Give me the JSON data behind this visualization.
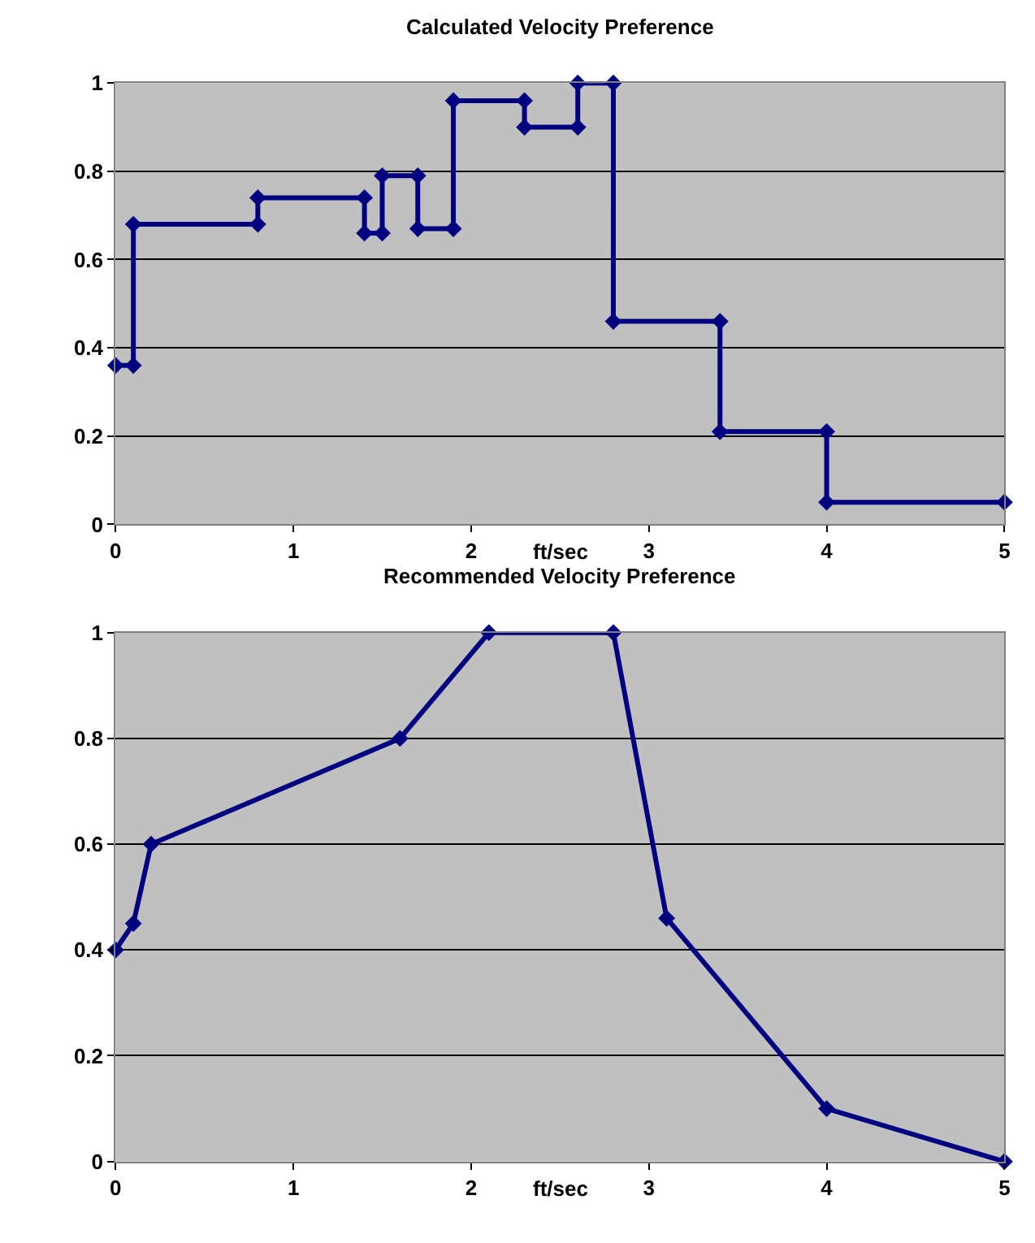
{
  "chart_data": [
    {
      "type": "line",
      "title": "Calculated Velocity Preference",
      "xlabel": "ft/sec",
      "xlim": [
        0,
        5
      ],
      "xticks": [
        0,
        1,
        2,
        3,
        4,
        5
      ],
      "ylim": [
        0,
        1
      ],
      "yticks": [
        0,
        0.2,
        0.4,
        0.6,
        0.8,
        1
      ],
      "grid": "y",
      "marker": "diamond",
      "line_style": "solid",
      "x": [
        0,
        0.1,
        0.1,
        0.8,
        0.8,
        1.4,
        1.4,
        1.5,
        1.5,
        1.7,
        1.7,
        1.9,
        1.9,
        2.3,
        2.3,
        2.6,
        2.6,
        2.8,
        2.8,
        3.4,
        3.4,
        4,
        4,
        5
      ],
      "series": [
        {
          "color": "#000080",
          "values": [
            0.36,
            0.36,
            0.68,
            0.68,
            0.74,
            0.74,
            0.66,
            0.66,
            0.79,
            0.79,
            0.67,
            0.67,
            0.96,
            0.96,
            0.9,
            0.9,
            1,
            1,
            0.46,
            0.46,
            0.21,
            0.21,
            0.05,
            0.05
          ]
        }
      ]
    },
    {
      "type": "line",
      "title": "Recommended Velocity Preference",
      "xlabel": "ft/sec",
      "xlim": [
        0,
        5
      ],
      "xticks": [
        0,
        1,
        2,
        3,
        4,
        5
      ],
      "ylim": [
        0,
        1
      ],
      "yticks": [
        0,
        0.2,
        0.4,
        0.6,
        0.8,
        1
      ],
      "grid": "y",
      "marker": "diamond",
      "line_style": "solid",
      "x": [
        0,
        0.1,
        0.2,
        1.6,
        2.1,
        2.8,
        3.1,
        4,
        5
      ],
      "series": [
        {
          "color": "#000080",
          "values": [
            0.4,
            0.45,
            0.6,
            0.8,
            1,
            1,
            0.46,
            0.1,
            0
          ]
        }
      ]
    }
  ]
}
